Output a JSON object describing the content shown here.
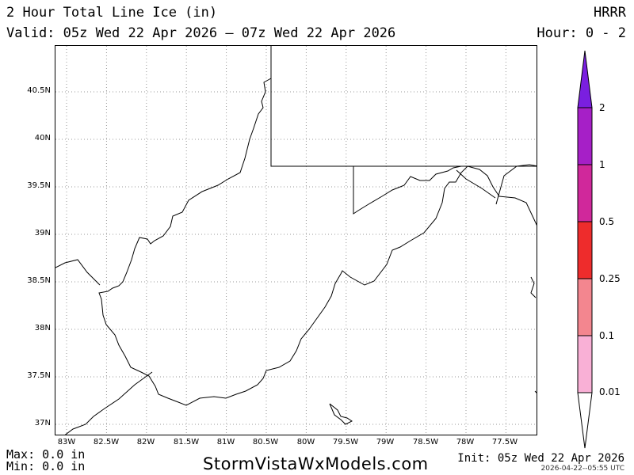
{
  "header": {
    "title": "2 Hour Total Line Ice (in)",
    "valid": "Valid: 05z Wed 22 Apr 2026 – 07z Wed 22 Apr 2026",
    "model": "HRRR",
    "hour": "Hour: 0 - 2"
  },
  "axes": {
    "lat_labels": [
      "40.5N",
      "40N",
      "39.5N",
      "39N",
      "38.5N",
      "38N",
      "37.5N",
      "37N"
    ],
    "lon_labels": [
      "83W",
      "82.5W",
      "82W",
      "81.5W",
      "81W",
      "80.5W",
      "80W",
      "79.5W",
      "79W",
      "78.5W",
      "78W",
      "77.5W"
    ]
  },
  "colorbar": {
    "labels": [
      "2",
      "1",
      "0.5",
      "0.25",
      "0.1",
      "0.01"
    ],
    "colors": [
      "#7a1fe0",
      "#a61fc7",
      "#d0289b",
      "#ee2c2c",
      "#f3868f",
      "#f9b0d6",
      "#ffffff"
    ]
  },
  "footer": {
    "max": "Max: 0.0 in",
    "min": "Min: 0.0 in",
    "site": "StormVistaWxModels.com",
    "init": "Init: 05z Wed 22 Apr 2026",
    "stamp": "2026-04-22--05:55 UTC"
  }
}
